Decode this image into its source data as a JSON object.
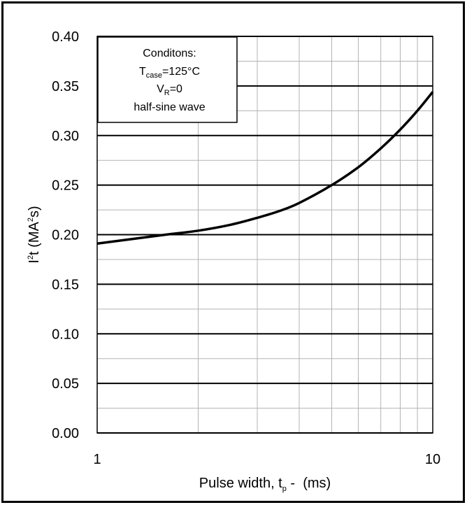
{
  "chart_data": {
    "type": "line",
    "xscale": "log",
    "xlim": [
      1,
      10
    ],
    "ylim": [
      0.0,
      0.4
    ],
    "x_ticks": [
      {
        "value": 1,
        "label": "1"
      },
      {
        "value": 10,
        "label": "10"
      }
    ],
    "y_ticks": [
      {
        "value": 0.0,
        "label": "0.00"
      },
      {
        "value": 0.05,
        "label": "0.05"
      },
      {
        "value": 0.1,
        "label": "0.10"
      },
      {
        "value": 0.15,
        "label": "0.15"
      },
      {
        "value": 0.2,
        "label": "0.20"
      },
      {
        "value": 0.25,
        "label": "0.25"
      },
      {
        "value": 0.3,
        "label": "0.30"
      },
      {
        "value": 0.35,
        "label": "0.35"
      },
      {
        "value": 0.4,
        "label": "0.40"
      }
    ],
    "xlabel": {
      "prefix": "Pulse width, t",
      "subscript": "p",
      "suffix": " -  (ms)"
    },
    "ylabel": {
      "prefix": "I",
      "superscript": "2",
      "middle": "t (MA",
      "superscript2": "2",
      "suffix": "s)"
    },
    "grid": true,
    "series": [
      {
        "x": [
          1,
          1.3,
          1.6,
          2,
          2.5,
          3,
          3.5,
          4,
          5,
          6,
          7,
          8,
          9,
          10
        ],
        "y": [
          0.191,
          0.196,
          0.2,
          0.204,
          0.21,
          0.217,
          0.224,
          0.232,
          0.25,
          0.268,
          0.287,
          0.306,
          0.325,
          0.344
        ]
      }
    ],
    "annotation": {
      "title": "Conditons:",
      "line1": {
        "prefix": "T",
        "subscript": "case",
        "suffix": "=125°C"
      },
      "line2": {
        "prefix": "V",
        "subscript": "R",
        "suffix": "=0"
      },
      "line3": "half-sine wave"
    }
  }
}
